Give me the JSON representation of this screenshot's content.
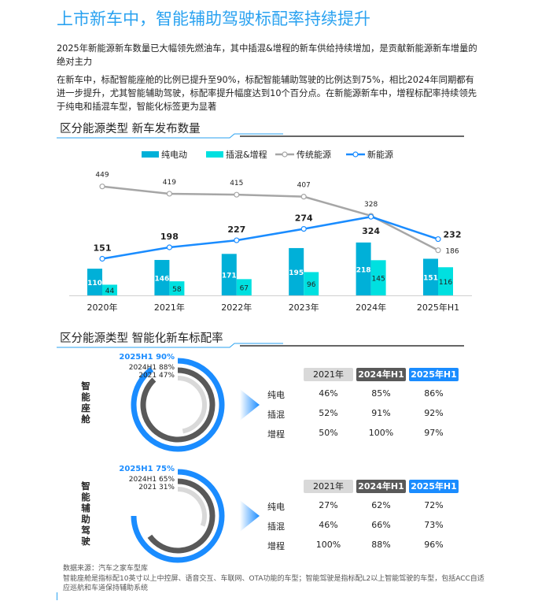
{
  "title": "上市新车中，智能辅助驾驶标配率持续提升",
  "paragraphs": [
    "2025年新能源新车数量已大幅领先燃油车，其中插混&增程的新车供给持续增加，是贡献新能源新车增量的绝对主力",
    "在新车中，标配智能座舱的比例已提升至90%，标配智能辅助驾驶的比例达到75%，相比2024年同期都有进一步提升，尤其智能辅助驾驶，标配率提升幅度达到10个百分点。在新能源新车中，增程标配率持续领先于纯电和插混车型，智能化标签更为显著"
  ],
  "section1": "区分能源类型 新车发布数量",
  "section2": "区分能源类型 智能化新车标配率",
  "colors": {
    "ev": "#00b0d8",
    "phev": "#00e0e0",
    "traditional": "#a6a6a6",
    "nev": "#1a8cff",
    "accent": "#2aa2f0",
    "dark": "#595959",
    "light": "#d9d9d9"
  },
  "chart_data": [
    {
      "type": "bar+line",
      "categories": [
        "2020年",
        "2021年",
        "2022年",
        "2023年",
        "2024年",
        "2025年H1"
      ],
      "series": [
        {
          "name": "纯电动",
          "type": "bar",
          "values": [
            110,
            146,
            171,
            195,
            218,
            151
          ]
        },
        {
          "name": "插混&增程",
          "type": "bar",
          "values": [
            44,
            58,
            67,
            96,
            145,
            116
          ]
        },
        {
          "name": "传统能源",
          "type": "line",
          "values": [
            449,
            419,
            415,
            407,
            328,
            186
          ]
        },
        {
          "name": "新能源",
          "type": "line",
          "values": [
            151,
            198,
            227,
            274,
            324,
            232
          ]
        }
      ],
      "legend": "top"
    },
    {
      "type": "radial-bar",
      "label": "智能座舱",
      "rings": [
        {
          "name": "2025H1",
          "value": 90,
          "text": "2025H1 90%"
        },
        {
          "name": "2024H1",
          "value": 88,
          "text": "2024H1 88%"
        },
        {
          "name": "2021",
          "value": 47,
          "text": "2021 47%"
        }
      ],
      "table": {
        "headers": [
          "2021年",
          "2024年H1",
          "2025年H1"
        ],
        "rows": [
          {
            "label": "纯电",
            "values": [
              "46%",
              "85%",
              "86%"
            ]
          },
          {
            "label": "插混",
            "values": [
              "52%",
              "91%",
              "92%"
            ]
          },
          {
            "label": "增程",
            "values": [
              "50%",
              "100%",
              "97%"
            ]
          }
        ]
      }
    },
    {
      "type": "radial-bar",
      "label": "智能辅助驾驶",
      "rings": [
        {
          "name": "2025H1",
          "value": 75,
          "text": "2025H1 75%"
        },
        {
          "name": "2024H1",
          "value": 65,
          "text": "2024H1 65%"
        },
        {
          "name": "2021",
          "value": 31,
          "text": "2021 31%"
        }
      ],
      "table": {
        "headers": [
          "2021年",
          "2024年H1",
          "2025年H1"
        ],
        "rows": [
          {
            "label": "纯电",
            "values": [
              "27%",
              "62%",
              "72%"
            ]
          },
          {
            "label": "插混",
            "values": [
              "46%",
              "66%",
              "73%"
            ]
          },
          {
            "label": "增程",
            "values": [
              "100%",
              "88%",
              "96%"
            ]
          }
        ]
      }
    }
  ],
  "footer": [
    "数据来源：汽车之家车型库",
    "智能座舱是指标配10英寸以上中控屏、语音交互、车联网、OTA功能的车型；智能驾驶是指标配L2以上智能驾驶的车型，包括ACC自适应巡航和车道保持辅助系统"
  ]
}
